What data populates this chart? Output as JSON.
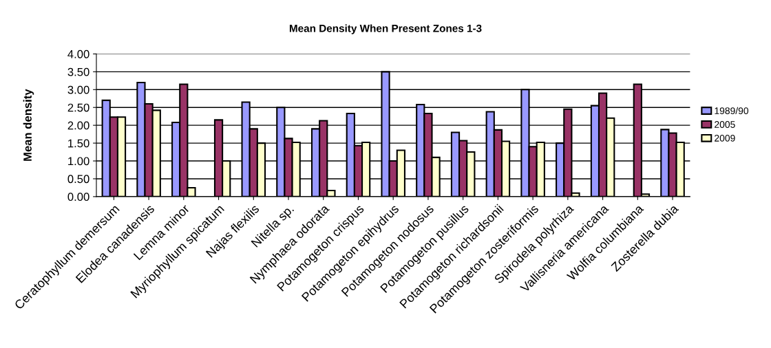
{
  "chart_data": {
    "type": "bar",
    "title": "Mean Density When Present Zones 1-3",
    "ylabel": "Mean density",
    "categories": [
      "Ceratophyllum demersum",
      "Elodea canadensis",
      "Lemna minor",
      "Myriophyllum spicatum",
      "Najas flexilis",
      "Nitella sp.",
      "Nymphaea odorata",
      "Potamogeton crispus",
      "Potamogeton epihydrus",
      "Potamogeton nodosus",
      "Potamogeton pusillus",
      "Potamogeton richardsonii",
      "Potamogeton zosteriformis",
      "Spirodela polyrhiza",
      "Vallisneria americana",
      "Wolfia columbiana",
      "Zosterella dubia"
    ],
    "series": [
      {
        "name": "1989/90",
        "color": "#9999ff",
        "values": [
          2.7,
          3.2,
          2.08,
          null,
          2.65,
          2.5,
          1.9,
          2.33,
          3.5,
          2.58,
          1.8,
          2.38,
          3.0,
          1.5,
          2.55,
          null,
          1.88
        ]
      },
      {
        "name": "2005",
        "color": "#993366",
        "values": [
          2.23,
          2.6,
          3.15,
          2.15,
          1.9,
          1.63,
          2.13,
          1.43,
          1.0,
          2.33,
          1.57,
          1.87,
          1.4,
          2.45,
          2.9,
          3.15,
          1.78
        ]
      },
      {
        "name": "2009",
        "color": "#ffffcc",
        "values": [
          2.23,
          2.42,
          0.25,
          1.0,
          1.5,
          1.52,
          0.17,
          1.52,
          1.3,
          1.1,
          1.25,
          1.55,
          1.52,
          0.1,
          2.2,
          0.07,
          1.52
        ]
      }
    ],
    "ylim": [
      0,
      4
    ],
    "yticks": [
      {
        "value": 0,
        "label": "0.00"
      },
      {
        "value": 0.5,
        "label": "0.50"
      },
      {
        "value": 1,
        "label": "1.00"
      },
      {
        "value": 1.5,
        "label": "1.50"
      },
      {
        "value": 2,
        "label": "2.00"
      },
      {
        "value": 2.5,
        "label": "2.50"
      },
      {
        "value": 3,
        "label": "3.00"
      },
      {
        "value": 3.5,
        "label": "3.50"
      },
      {
        "value": 4,
        "label": "4.00"
      }
    ],
    "grid": "y",
    "legend": "right"
  }
}
